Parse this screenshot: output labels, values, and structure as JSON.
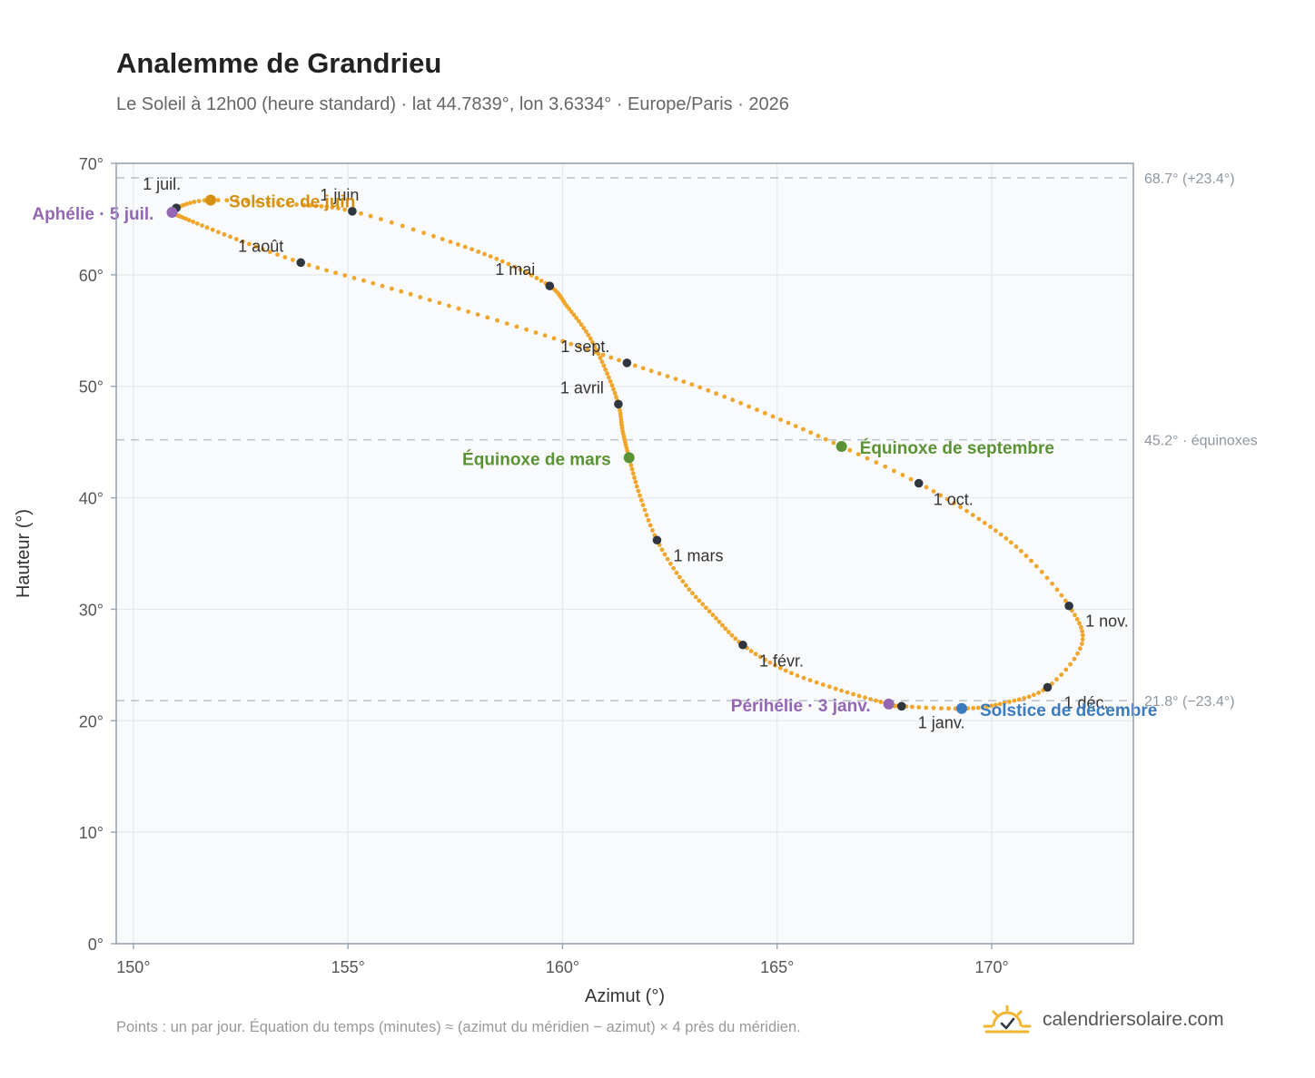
{
  "header": {
    "title": "Analemme de Grandrieu",
    "subtitle": "Le Soleil à 12h00 (heure standard) · lat 44.7839°, lon 3.6334° · Europe/Paris · 2026"
  },
  "footer": {
    "note": "Points : un par jour. Équation du temps (minutes) ≈ (azimut du méridien − azimut) × 4 près du méridien.",
    "brand": "calendriersolaire.com",
    "brand_icon": "sun-icon"
  },
  "colors": {
    "curve": "#f0a52b",
    "month_marker": "#2f3640",
    "equinox": "#5a9234",
    "solstice_june": "#d4900e",
    "solstice_december": "#3b7bbf",
    "apsis": "#9367b4",
    "reference_line": "#bfc5cc",
    "plot_background": "#f8fafc",
    "axis": "#9aa5b1"
  },
  "chart_data": {
    "type": "scatter",
    "title": "Analemme de Grandrieu",
    "xlabel": "Azimut (°)",
    "ylabel": "Hauteur (°)",
    "xlim": [
      149.6,
      173.3
    ],
    "ylim": [
      0,
      70
    ],
    "x_ticks": [
      150,
      155,
      160,
      165,
      170
    ],
    "x_tick_labels": [
      "150°",
      "155°",
      "160°",
      "165°",
      "170°"
    ],
    "y_ticks": [
      0,
      10,
      20,
      30,
      40,
      50,
      60,
      70
    ],
    "y_tick_labels": [
      "0°",
      "10°",
      "20°",
      "30°",
      "40°",
      "50°",
      "60°",
      "70°"
    ],
    "grid": true,
    "reference_lines": [
      {
        "y": 68.7,
        "label": "68.7° (+23.4°)"
      },
      {
        "y": 45.2,
        "label": "45.2° · équinoxes"
      },
      {
        "y": 21.8,
        "label": "21.8° (−23.4°)"
      }
    ],
    "month_markers": [
      {
        "label": "1 janv.",
        "x": 167.9,
        "y": 21.3
      },
      {
        "label": "1 févr.",
        "x": 164.2,
        "y": 26.8
      },
      {
        "label": "1 mars",
        "x": 162.2,
        "y": 36.2
      },
      {
        "label": "1 avril",
        "x": 161.3,
        "y": 48.4
      },
      {
        "label": "1 mai",
        "x": 159.7,
        "y": 59.0
      },
      {
        "label": "1 juin",
        "x": 155.1,
        "y": 65.7
      },
      {
        "label": "1 juil.",
        "x": 151.0,
        "y": 66.0
      },
      {
        "label": "1 août",
        "x": 153.9,
        "y": 61.1
      },
      {
        "label": "1 sept.",
        "x": 161.5,
        "y": 52.1
      },
      {
        "label": "1 oct.",
        "x": 168.3,
        "y": 41.3
      },
      {
        "label": "1 nov.",
        "x": 171.8,
        "y": 30.3
      },
      {
        "label": "1 déc.",
        "x": 171.3,
        "y": 23.0
      }
    ],
    "events": [
      {
        "label": "Équinoxe de mars",
        "x": 161.55,
        "y": 43.6,
        "color": "#5a9234"
      },
      {
        "label": "Équinoxe de septembre",
        "x": 166.5,
        "y": 44.6,
        "color": "#5a9234"
      },
      {
        "label": "Solstice de juin",
        "x": 151.8,
        "y": 66.7,
        "color": "#d4900e"
      },
      {
        "label": "Solstice de décembre",
        "x": 169.3,
        "y": 21.1,
        "color": "#3b7bbf"
      },
      {
        "label": "Aphélie · 5 juil.",
        "x": 150.9,
        "y": 65.6,
        "color": "#9367b4"
      },
      {
        "label": "Périhélie · 3 janv.",
        "x": 167.6,
        "y": 21.5,
        "color": "#9367b4"
      }
    ],
    "curve_anchors": [
      {
        "x": 167.9,
        "y": 21.3
      },
      {
        "x": 167.6,
        "y": 21.5
      },
      {
        "x": 166.5,
        "y": 22.7
      },
      {
        "x": 165.2,
        "y": 24.5
      },
      {
        "x": 164.2,
        "y": 26.8
      },
      {
        "x": 163.5,
        "y": 29.5
      },
      {
        "x": 162.8,
        "y": 32.5
      },
      {
        "x": 162.2,
        "y": 36.2
      },
      {
        "x": 161.8,
        "y": 40.2
      },
      {
        "x": 161.55,
        "y": 43.6
      },
      {
        "x": 161.4,
        "y": 46.0
      },
      {
        "x": 161.3,
        "y": 48.4
      },
      {
        "x": 161.0,
        "y": 51.5
      },
      {
        "x": 160.6,
        "y": 54.6
      },
      {
        "x": 160.1,
        "y": 57.2
      },
      {
        "x": 159.7,
        "y": 59.0
      },
      {
        "x": 158.6,
        "y": 61.2
      },
      {
        "x": 157.2,
        "y": 63.2
      },
      {
        "x": 155.1,
        "y": 65.7
      },
      {
        "x": 153.8,
        "y": 66.3
      },
      {
        "x": 151.8,
        "y": 66.7
      },
      {
        "x": 151.0,
        "y": 66.0
      },
      {
        "x": 150.9,
        "y": 65.6
      },
      {
        "x": 151.3,
        "y": 64.9
      },
      {
        "x": 152.4,
        "y": 63.2
      },
      {
        "x": 153.9,
        "y": 61.1
      },
      {
        "x": 155.8,
        "y": 59.0
      },
      {
        "x": 157.8,
        "y": 56.7
      },
      {
        "x": 159.8,
        "y": 54.3
      },
      {
        "x": 161.5,
        "y": 52.1
      },
      {
        "x": 163.2,
        "y": 49.9
      },
      {
        "x": 164.9,
        "y": 47.3
      },
      {
        "x": 166.5,
        "y": 44.6
      },
      {
        "x": 168.3,
        "y": 41.3
      },
      {
        "x": 169.7,
        "y": 38.1
      },
      {
        "x": 170.8,
        "y": 34.8
      },
      {
        "x": 171.8,
        "y": 30.3
      },
      {
        "x": 172.1,
        "y": 26.9
      },
      {
        "x": 171.3,
        "y": 23.0
      },
      {
        "x": 170.3,
        "y": 21.6
      },
      {
        "x": 169.3,
        "y": 21.1
      },
      {
        "x": 167.9,
        "y": 21.3
      }
    ]
  }
}
